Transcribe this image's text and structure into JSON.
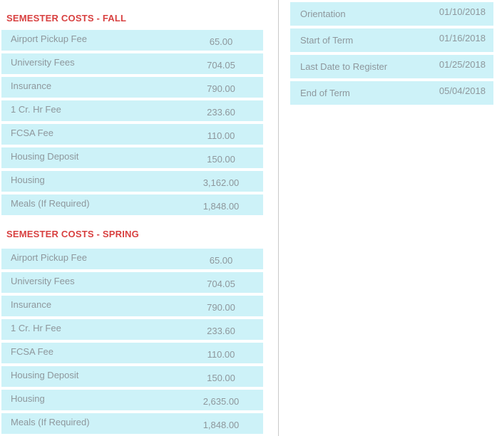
{
  "theme": {
    "row_background": "#cdf2f8",
    "text_color": "#8e979c",
    "heading_color": "#d84040",
    "divider_color": "#c9c9c9"
  },
  "sections": {
    "fall": {
      "title": "SEMESTER COSTS - FALL",
      "rows": [
        {
          "label": "Airport Pickup Fee",
          "value": "65.00"
        },
        {
          "label": "University Fees",
          "value": "704.05"
        },
        {
          "label": "Insurance",
          "value": "790.00"
        },
        {
          "label": "1 Cr. Hr Fee",
          "value": "233.60"
        },
        {
          "label": "FCSA Fee",
          "value": "110.00"
        },
        {
          "label": "Housing Deposit",
          "value": "150.00"
        },
        {
          "label": "Housing",
          "value": "3,162.00"
        },
        {
          "label": "Meals (If Required)",
          "value": "1,848.00"
        }
      ]
    },
    "spring": {
      "title": "SEMESTER COSTS - SPRING",
      "rows": [
        {
          "label": "Airport Pickup Fee",
          "value": "65.00"
        },
        {
          "label": "University Fees",
          "value": "704.05"
        },
        {
          "label": "Insurance",
          "value": "790.00"
        },
        {
          "label": "1 Cr. Hr Fee",
          "value": "233.60"
        },
        {
          "label": "FCSA Fee",
          "value": "110.00"
        },
        {
          "label": "Housing Deposit",
          "value": "150.00"
        },
        {
          "label": "Housing",
          "value": "2,635.00"
        },
        {
          "label": "Meals (If Required)",
          "value": "1,848.00"
        }
      ]
    }
  },
  "term_dates": {
    "rows": [
      {
        "label": "Orientation",
        "value": "01/10/2018"
      },
      {
        "label": "Start of Term",
        "value": "01/16/2018"
      },
      {
        "label": "Last Date to Register",
        "value": "01/25/2018"
      },
      {
        "label": "End of Term",
        "value": "05/04/2018"
      }
    ]
  }
}
